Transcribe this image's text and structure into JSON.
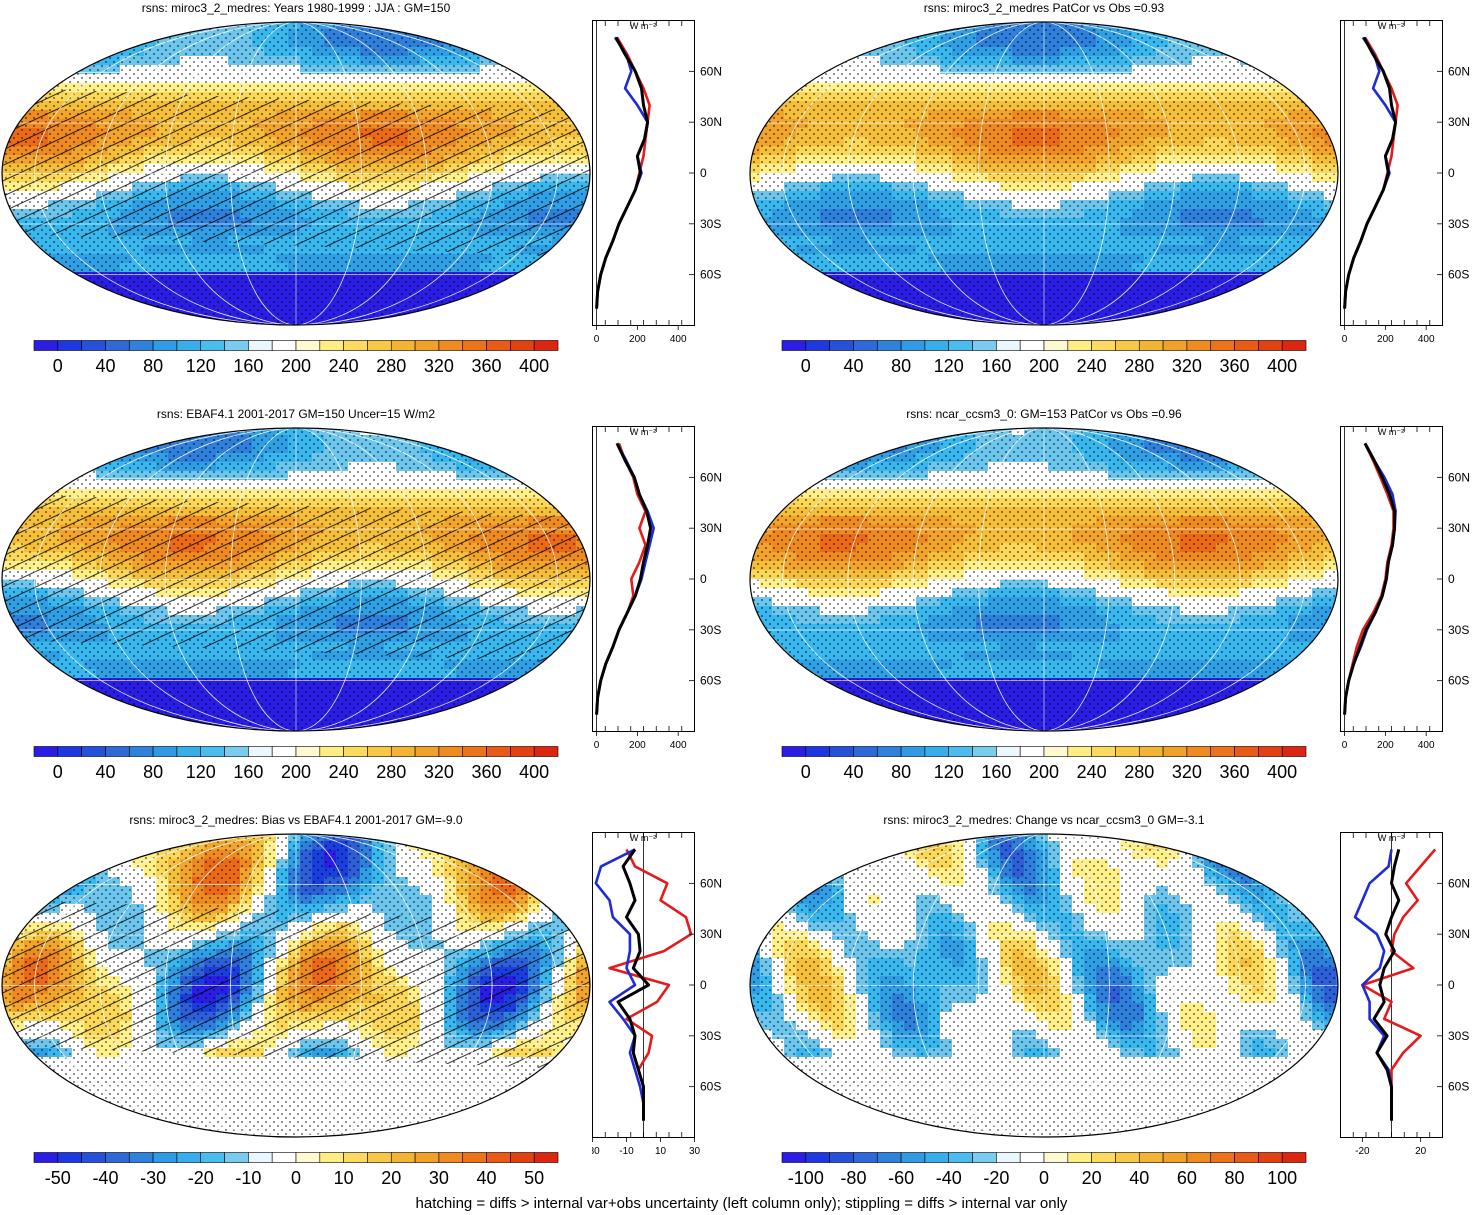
{
  "panels": [
    {
      "title": "rsns: miroc3_2_medres: Years 1980-1999 : JJA : GM=150",
      "kind": "abs",
      "hatch": true,
      "zonal": {
        "xticks": [
          "0",
          "200",
          "400"
        ],
        "xlim": [
          -20,
          480
        ]
      },
      "colorbar": [
        "0",
        "40",
        "80",
        "120",
        "160",
        "200",
        "240",
        "280",
        "320",
        "360",
        "400"
      ]
    },
    {
      "title": "rsns: miroc3_2_medres PatCor vs Obs =0.93",
      "kind": "abs",
      "hatch": false,
      "zonal": {
        "xticks": [
          "0",
          "200",
          "400"
        ],
        "xlim": [
          -20,
          480
        ]
      },
      "colorbar": [
        "0",
        "40",
        "80",
        "120",
        "160",
        "200",
        "240",
        "280",
        "320",
        "360",
        "400"
      ]
    },
    {
      "title": "rsns: EBAF4.1 2001-2017 GM=150 Uncer=15 W/m2",
      "kind": "abs",
      "hatch": true,
      "zonal": {
        "xticks": [
          "0",
          "200",
          "400"
        ],
        "xlim": [
          -20,
          480
        ]
      },
      "colorbar": [
        "0",
        "40",
        "80",
        "120",
        "160",
        "200",
        "240",
        "280",
        "320",
        "360",
        "400"
      ]
    },
    {
      "title": "rsns: ncar_ccsm3_0: GM=153 PatCor vs Obs =0.96",
      "kind": "abs",
      "hatch": false,
      "zonal": {
        "xticks": [
          "0",
          "200",
          "400"
        ],
        "xlim": [
          -20,
          480
        ]
      },
      "colorbar": [
        "0",
        "40",
        "80",
        "120",
        "160",
        "200",
        "240",
        "280",
        "320",
        "360",
        "400"
      ]
    },
    {
      "title": "rsns: miroc3_2_medres: Bias vs EBAF4.1 2001-2017 GM=-9.0",
      "kind": "bias",
      "hatch": true,
      "zonal": {
        "xticks": [
          "-30",
          "-10",
          "10",
          "30"
        ],
        "xlim": [
          -30,
          30
        ]
      },
      "colorbar": [
        "-50",
        "-40",
        "-30",
        "-20",
        "-10",
        "0",
        "10",
        "20",
        "30",
        "40",
        "50"
      ]
    },
    {
      "title": "rsns: miroc3_2_medres: Change vs ncar_ccsm3_0 GM=-3.1",
      "kind": "change",
      "hatch": false,
      "zonal": {
        "xticks": [
          "-20",
          "20"
        ],
        "xlim": [
          -35,
          35
        ]
      },
      "colorbar": [
        "-100",
        "-80",
        "-60",
        "-40",
        "-20",
        "0",
        "20",
        "40",
        "60",
        "80",
        "100"
      ]
    }
  ],
  "zonal_unit": "W m⁻²",
  "lat_ticks": [
    "60N",
    "30N",
    "0",
    "30S",
    "60S"
  ],
  "colors": {
    "palette": [
      "#2a1ee6",
      "#1a3fe0",
      "#2e5fd8",
      "#2f80dc",
      "#30a0e6",
      "#39b8ef",
      "#6cc6ee",
      "#ffffff",
      "#ffffff",
      "#fff08a",
      "#fbd85a",
      "#f6bf3a",
      "#f2a52a",
      "#ef8a1e",
      "#ec6a16",
      "#e64a12",
      "#dd2610"
    ],
    "series": [
      "#e41a1c",
      "#1f2bd9",
      "#000000"
    ]
  },
  "footer": "hatching = diffs > internal var+obs uncertainty (left column only); stippling = diffs > internal var only",
  "chart_data": [
    {
      "type": "line",
      "title": "rsns: miroc3_2_medres: Years 1980-1999 : JJA : GM=150",
      "lat": [
        80,
        70,
        60,
        50,
        40,
        30,
        20,
        10,
        0,
        -10,
        -20,
        -30,
        -40,
        -50,
        -60,
        -70,
        -80
      ],
      "series": [
        {
          "values": [
            100,
            150,
            190,
            230,
            260,
            250,
            240,
            230,
            210,
            190,
            150,
            110,
            80,
            45,
            20,
            5,
            0
          ]
        },
        {
          "values": [
            90,
            145,
            170,
            140,
            200,
            250,
            235,
            200,
            220,
            190,
            150,
            110,
            80,
            45,
            20,
            5,
            0
          ]
        },
        {
          "values": [
            95,
            140,
            190,
            220,
            230,
            250,
            235,
            200,
            215,
            190,
            150,
            110,
            80,
            45,
            20,
            5,
            0
          ]
        }
      ]
    },
    {
      "type": "line",
      "title": "rsns: miroc3_2_medres PatCor vs Obs =0.93",
      "lat": [
        80,
        70,
        60,
        50,
        40,
        30,
        20,
        10,
        0,
        -10,
        -20,
        -30,
        -40,
        -50,
        -60,
        -70,
        -80
      ],
      "series": [
        {
          "values": [
            100,
            150,
            190,
            230,
            260,
            250,
            240,
            230,
            210,
            190,
            150,
            110,
            80,
            45,
            20,
            5,
            0
          ]
        },
        {
          "values": [
            90,
            145,
            170,
            140,
            200,
            250,
            235,
            200,
            220,
            190,
            150,
            110,
            80,
            45,
            20,
            5,
            0
          ]
        },
        {
          "values": [
            95,
            140,
            190,
            220,
            230,
            250,
            235,
            200,
            215,
            190,
            150,
            110,
            80,
            45,
            20,
            5,
            0
          ]
        }
      ]
    },
    {
      "type": "line",
      "title": "rsns: EBAF4.1 2001-2017 GM=150 Uncer=15 W/m2",
      "lat": [
        80,
        70,
        60,
        50,
        40,
        30,
        20,
        10,
        0,
        -10,
        -20,
        -30,
        -40,
        -50,
        -60,
        -70,
        -80
      ],
      "series": [
        {
          "values": [
            110,
            140,
            180,
            200,
            240,
            210,
            240,
            210,
            170,
            180,
            150,
            110,
            80,
            45,
            20,
            5,
            0
          ]
        },
        {
          "values": [
            100,
            145,
            185,
            210,
            250,
            280,
            260,
            240,
            220,
            190,
            150,
            110,
            80,
            45,
            20,
            5,
            0
          ]
        },
        {
          "values": [
            100,
            140,
            185,
            210,
            245,
            265,
            250,
            230,
            215,
            190,
            150,
            110,
            80,
            45,
            20,
            5,
            0
          ]
        }
      ]
    },
    {
      "type": "line",
      "title": "rsns: ncar_ccsm3_0: GM=153 PatCor vs Obs =0.96",
      "lat": [
        80,
        70,
        60,
        50,
        40,
        30,
        20,
        10,
        0,
        -10,
        -20,
        -30,
        -40,
        -50,
        -60,
        -70,
        -80
      ],
      "series": [
        {
          "values": [
            100,
            140,
            175,
            210,
            240,
            240,
            230,
            210,
            200,
            180,
            140,
            90,
            60,
            40,
            20,
            5,
            0
          ]
        },
        {
          "values": [
            100,
            145,
            195,
            235,
            250,
            245,
            235,
            215,
            205,
            185,
            150,
            110,
            80,
            45,
            20,
            5,
            0
          ]
        },
        {
          "values": [
            100,
            145,
            185,
            220,
            245,
            245,
            235,
            215,
            205,
            185,
            150,
            105,
            75,
            45,
            20,
            5,
            0
          ]
        }
      ]
    },
    {
      "type": "line",
      "title": "rsns: miroc3_2_medres: Bias vs EBAF4.1 2001-2017 GM=-9.0",
      "lat": [
        80,
        70,
        60,
        50,
        40,
        30,
        20,
        10,
        0,
        -10,
        -20,
        -30,
        -40,
        -50,
        -60,
        -70,
        -80
      ],
      "series": [
        {
          "values": [
            -10,
            -5,
            14,
            10,
            25,
            28,
            12,
            -20,
            15,
            8,
            -10,
            5,
            3,
            -3,
            0,
            0,
            0
          ]
        },
        {
          "values": [
            -5,
            -25,
            -28,
            -20,
            -18,
            -8,
            -8,
            -10,
            -5,
            -20,
            -12,
            -5,
            -8,
            -5,
            -2,
            0,
            0
          ]
        },
        {
          "values": [
            -5,
            -12,
            -8,
            -5,
            -10,
            -3,
            -2,
            -6,
            3,
            -15,
            -8,
            -5,
            -6,
            -3,
            0,
            0,
            0
          ]
        }
      ]
    },
    {
      "type": "line",
      "title": "rsns: miroc3_2_medres: Change vs ncar_ccsm3_0 GM=-3.1",
      "lat": [
        80,
        70,
        60,
        50,
        40,
        30,
        20,
        10,
        0,
        -10,
        -20,
        -30,
        -40,
        -50,
        -60,
        -70,
        -80
      ],
      "series": [
        {
          "values": [
            30,
            20,
            10,
            18,
            8,
            2,
            0,
            15,
            -20,
            0,
            -5,
            20,
            8,
            0,
            0,
            0,
            0
          ]
        },
        {
          "values": [
            0,
            -2,
            -15,
            -20,
            -25,
            -10,
            -5,
            -8,
            -20,
            -15,
            -15,
            -5,
            -10,
            -2,
            0,
            0,
            0
          ]
        },
        {
          "values": [
            5,
            2,
            0,
            5,
            0,
            -4,
            2,
            -5,
            -8,
            -5,
            -12,
            -3,
            -10,
            -3,
            0,
            0,
            0
          ]
        }
      ]
    }
  ]
}
